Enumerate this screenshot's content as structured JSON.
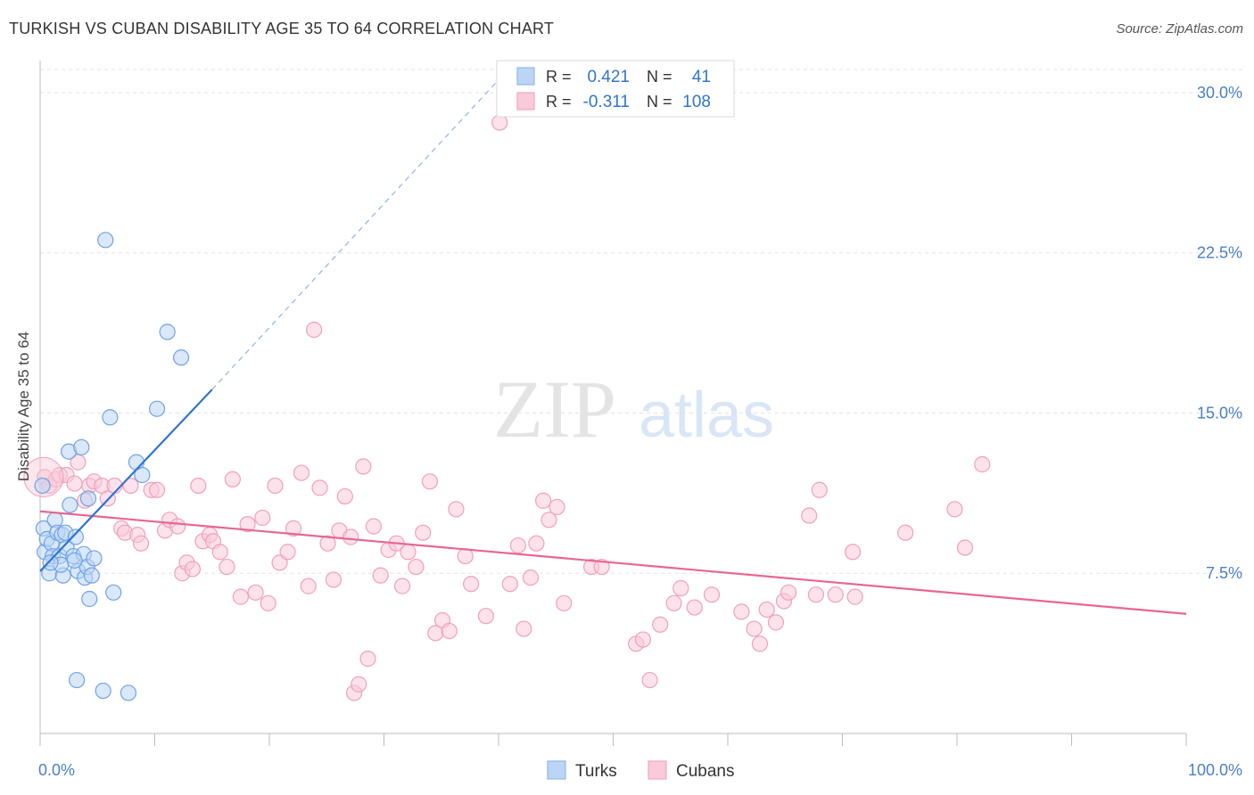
{
  "title": "TURKISH VS CUBAN DISABILITY AGE 35 TO 64 CORRELATION CHART",
  "source": "Source: ZipAtlas.com",
  "watermark": {
    "zip": "ZIP",
    "atlas": "atlas"
  },
  "legend_box": {
    "r_label": "R =",
    "n_label": "N =",
    "rows": [
      {
        "r": "0.421",
        "n": "41",
        "color": "#8fb8ea"
      },
      {
        "r": "-0.311",
        "n": "108",
        "color": "#f3a5bf"
      }
    ]
  },
  "chart_data": {
    "type": "scatter",
    "title": "TURKISH VS CUBAN DISABILITY AGE 35 TO 64 CORRELATION CHART",
    "xlabel": "",
    "ylabel": "Disability Age 35 to 64",
    "xlim": [
      0,
      100
    ],
    "ylim": [
      0,
      31.5
    ],
    "x_tick_labels": [
      "0.0%",
      "100.0%"
    ],
    "y_ticks": [
      7.5,
      15.0,
      22.5,
      30.0
    ],
    "y_tick_labels": [
      "7.5%",
      "15.0%",
      "22.5%",
      "30.0%"
    ],
    "grid": true,
    "legend_position": "bottom-center",
    "series": [
      {
        "name": "Turks",
        "color": "#7aaee6",
        "line_color": "#2f74d0",
        "trend": {
          "x0": 0,
          "y0": 7.6,
          "x1": 15,
          "y1": 16.1,
          "dashed_to_x": 40,
          "dashed_to_y": 30.6
        },
        "points": [
          [
            0.2,
            11.6
          ],
          [
            0.3,
            9.6
          ],
          [
            0.4,
            8.5
          ],
          [
            0.6,
            9.1
          ],
          [
            0.8,
            7.5
          ],
          [
            1.0,
            8.9
          ],
          [
            1.1,
            8.3
          ],
          [
            1.3,
            10.0
          ],
          [
            1.5,
            9.4
          ],
          [
            1.7,
            8.3
          ],
          [
            1.9,
            9.3
          ],
          [
            2.0,
            7.4
          ],
          [
            2.2,
            9.4
          ],
          [
            2.3,
            8.7
          ],
          [
            2.5,
            13.2
          ],
          [
            2.6,
            10.7
          ],
          [
            2.9,
            8.3
          ],
          [
            3.1,
            9.2
          ],
          [
            3.3,
            7.6
          ],
          [
            3.6,
            13.4
          ],
          [
            3.8,
            8.4
          ],
          [
            3.9,
            7.3
          ],
          [
            4.1,
            7.8
          ],
          [
            4.2,
            11.0
          ],
          [
            4.3,
            6.3
          ],
          [
            4.5,
            7.4
          ],
          [
            4.7,
            8.2
          ],
          [
            5.5,
            2.0
          ],
          [
            5.7,
            23.1
          ],
          [
            6.1,
            14.8
          ],
          [
            6.4,
            6.6
          ],
          [
            8.4,
            12.7
          ],
          [
            8.9,
            12.1
          ],
          [
            10.2,
            15.2
          ],
          [
            11.1,
            18.8
          ],
          [
            12.3,
            17.6
          ],
          [
            3.2,
            2.5
          ],
          [
            7.7,
            1.9
          ],
          [
            3.0,
            8.1
          ],
          [
            1.8,
            7.9
          ],
          [
            0.9,
            8.0
          ]
        ]
      },
      {
        "name": "Cubans",
        "color": "#f3a5bf",
        "line_color": "#e8668f",
        "trend": {
          "x0": 0,
          "y0": 10.4,
          "x1": 100,
          "y1": 5.6
        },
        "points": [
          [
            0.4,
            12.0
          ],
          [
            0.8,
            11.6
          ],
          [
            1.4,
            11.9
          ],
          [
            1.7,
            12.1
          ],
          [
            2.3,
            12.1
          ],
          [
            3.0,
            11.7
          ],
          [
            3.3,
            12.7
          ],
          [
            3.9,
            10.9
          ],
          [
            4.3,
            11.6
          ],
          [
            4.7,
            11.8
          ],
          [
            5.4,
            11.6
          ],
          [
            5.9,
            11.0
          ],
          [
            6.5,
            11.6
          ],
          [
            7.1,
            9.6
          ],
          [
            7.4,
            9.4
          ],
          [
            7.9,
            11.6
          ],
          [
            8.5,
            9.3
          ],
          [
            8.8,
            8.9
          ],
          [
            9.7,
            11.4
          ],
          [
            10.2,
            11.4
          ],
          [
            10.9,
            9.5
          ],
          [
            11.3,
            10.0
          ],
          [
            12.0,
            9.7
          ],
          [
            12.4,
            7.5
          ],
          [
            12.8,
            8.0
          ],
          [
            13.3,
            7.7
          ],
          [
            13.8,
            11.6
          ],
          [
            14.2,
            9.0
          ],
          [
            14.8,
            9.3
          ],
          [
            15.1,
            9.0
          ],
          [
            15.7,
            8.5
          ],
          [
            16.3,
            7.8
          ],
          [
            16.8,
            11.9
          ],
          [
            17.5,
            6.4
          ],
          [
            18.1,
            9.8
          ],
          [
            18.8,
            6.6
          ],
          [
            19.4,
            10.1
          ],
          [
            19.9,
            6.1
          ],
          [
            20.5,
            11.6
          ],
          [
            20.9,
            8.0
          ],
          [
            21.6,
            8.5
          ],
          [
            22.1,
            9.6
          ],
          [
            22.8,
            12.2
          ],
          [
            23.4,
            6.9
          ],
          [
            23.9,
            18.9
          ],
          [
            24.4,
            11.5
          ],
          [
            25.1,
            8.9
          ],
          [
            25.6,
            7.2
          ],
          [
            26.1,
            9.5
          ],
          [
            26.6,
            11.1
          ],
          [
            27.1,
            9.2
          ],
          [
            27.4,
            1.9
          ],
          [
            27.8,
            2.3
          ],
          [
            28.2,
            12.5
          ],
          [
            28.6,
            3.5
          ],
          [
            29.1,
            9.7
          ],
          [
            29.7,
            7.4
          ],
          [
            30.4,
            8.6
          ],
          [
            31.1,
            8.9
          ],
          [
            31.6,
            6.9
          ],
          [
            32.1,
            8.5
          ],
          [
            32.8,
            7.8
          ],
          [
            33.4,
            9.4
          ],
          [
            34.0,
            11.8
          ],
          [
            34.5,
            4.7
          ],
          [
            35.1,
            5.3
          ],
          [
            35.7,
            4.8
          ],
          [
            36.3,
            10.5
          ],
          [
            37.1,
            8.3
          ],
          [
            37.6,
            7.0
          ],
          [
            38.9,
            5.5
          ],
          [
            40.1,
            28.6
          ],
          [
            41.0,
            7.0
          ],
          [
            41.7,
            8.8
          ],
          [
            42.2,
            4.9
          ],
          [
            42.8,
            7.3
          ],
          [
            43.3,
            8.9
          ],
          [
            43.9,
            10.9
          ],
          [
            44.4,
            10.0
          ],
          [
            45.1,
            10.6
          ],
          [
            45.7,
            6.1
          ],
          [
            48.1,
            7.8
          ],
          [
            49.0,
            7.8
          ],
          [
            52.0,
            4.2
          ],
          [
            52.6,
            4.4
          ],
          [
            53.2,
            2.5
          ],
          [
            54.1,
            5.1
          ],
          [
            55.3,
            6.1
          ],
          [
            55.9,
            6.8
          ],
          [
            57.1,
            5.9
          ],
          [
            58.6,
            6.5
          ],
          [
            61.2,
            5.7
          ],
          [
            62.3,
            4.9
          ],
          [
            62.8,
            4.2
          ],
          [
            63.4,
            5.8
          ],
          [
            64.2,
            5.2
          ],
          [
            64.9,
            6.2
          ],
          [
            65.3,
            6.6
          ],
          [
            67.1,
            10.2
          ],
          [
            68.0,
            11.4
          ],
          [
            67.7,
            6.5
          ],
          [
            69.4,
            6.5
          ],
          [
            71.1,
            6.4
          ],
          [
            70.9,
            8.5
          ],
          [
            75.5,
            9.4
          ],
          [
            79.8,
            10.5
          ],
          [
            80.7,
            8.7
          ],
          [
            82.2,
            12.6
          ]
        ]
      }
    ]
  }
}
